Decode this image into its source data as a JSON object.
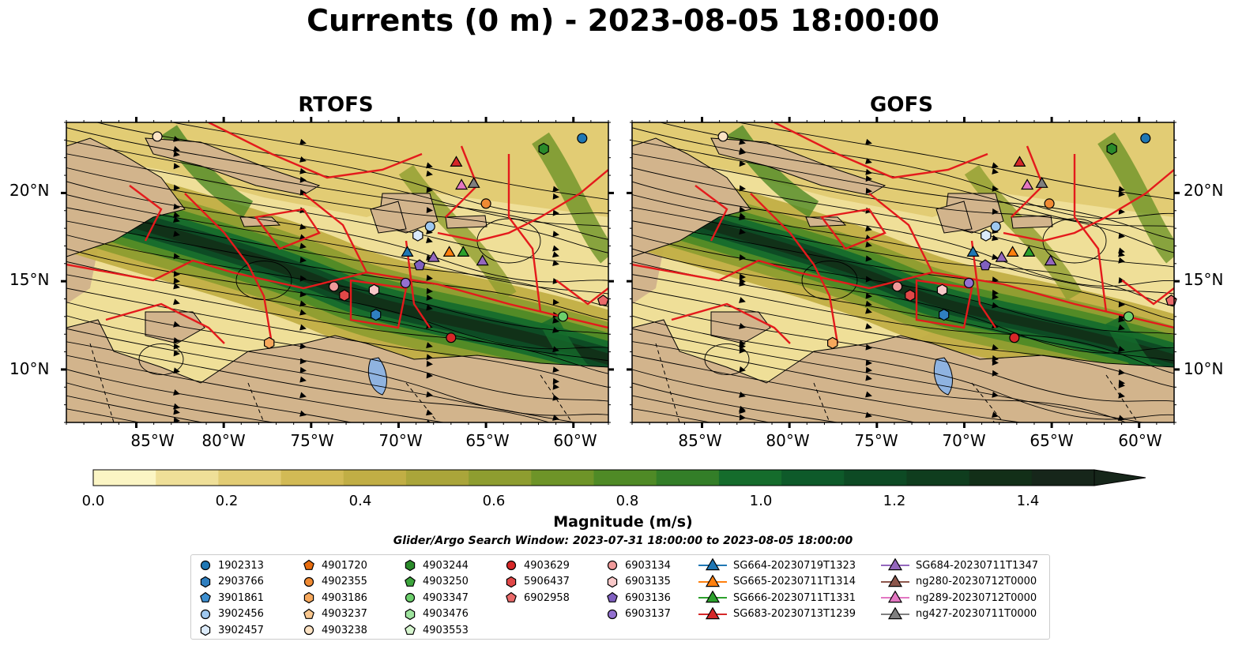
{
  "title": "Currents (0 m) - 2023-08-05 18:00:00",
  "panels": [
    {
      "name": "RTOFS"
    },
    {
      "name": "GOFS"
    }
  ],
  "lat_labels": [
    "20°N",
    "15°N",
    "10°N"
  ],
  "lon_labels": [
    "85°W",
    "80°W",
    "75°W",
    "70°W",
    "65°W",
    "60°W"
  ],
  "map_extent": {
    "lon": [
      -89,
      -58
    ],
    "lat": [
      7,
      24
    ]
  },
  "colorbar": {
    "label": "Magnitude (m/s)",
    "ticks": [
      "0.0",
      "0.2",
      "0.4",
      "0.6",
      "0.8",
      "1.0",
      "1.2",
      "1.4"
    ],
    "range": [
      0,
      1.5
    ],
    "extend": "max",
    "colors": [
      "#fbf5c4",
      "#efdf98",
      "#e2cc74",
      "#d2ba55",
      "#c1ae45",
      "#aaa53a",
      "#8e9d30",
      "#6e9428",
      "#4f8a26",
      "#337e28",
      "#156c2c",
      "#0e5a2a",
      "#0d4a24",
      "#0f3d1e",
      "#122f18",
      "#16261a"
    ]
  },
  "search_window": "Glider/Argo Search Window: 2023-07-31 18:00:00 to 2023-08-05 18:00:00",
  "legend": [
    {
      "label": "1902313",
      "marker": "circle",
      "color": "#1f77b4"
    },
    {
      "label": "2903766",
      "marker": "hexagon",
      "color": "#2f7fc0"
    },
    {
      "label": "3901861",
      "marker": "pentagon",
      "color": "#3d8fd0"
    },
    {
      "label": "3902456",
      "marker": "circle",
      "color": "#9fc8ef"
    },
    {
      "label": "3902457",
      "marker": "hexagon",
      "color": "#dbeafa"
    },
    {
      "label": "4901720",
      "marker": "pentagon",
      "color": "#e86d10"
    },
    {
      "label": "4902355",
      "marker": "circle",
      "color": "#f08a33"
    },
    {
      "label": "4903186",
      "marker": "hexagon",
      "color": "#f6a85c"
    },
    {
      "label": "4903237",
      "marker": "pentagon",
      "color": "#f9c78e"
    },
    {
      "label": "4903238",
      "marker": "circle",
      "color": "#fde3c4"
    },
    {
      "label": "4903244",
      "marker": "hexagon",
      "color": "#2a8a2a"
    },
    {
      "label": "4903250",
      "marker": "pentagon",
      "color": "#3da53d"
    },
    {
      "label": "4903347",
      "marker": "circle",
      "color": "#6ccf6c"
    },
    {
      "label": "4903476",
      "marker": "hexagon",
      "color": "#9ee39e"
    },
    {
      "label": "4903553",
      "marker": "pentagon",
      "color": "#d6f5cf"
    },
    {
      "label": "4903629",
      "marker": "circle",
      "color": "#d62728"
    },
    {
      "label": "5906437",
      "marker": "hexagon",
      "color": "#e04848"
    },
    {
      "label": "6902958",
      "marker": "pentagon",
      "color": "#ea6a6a"
    },
    {
      "label": "6903134",
      "marker": "circle",
      "color": "#f09a9a"
    },
    {
      "label": "6903135",
      "marker": "hexagon",
      "color": "#f8c8c8"
    },
    {
      "label": "6903136",
      "marker": "pentagon",
      "color": "#8060c0"
    },
    {
      "label": "6903137",
      "marker": "circle",
      "color": "#9370d0"
    },
    {
      "label": "SG664-20230719T1323",
      "marker": "triangle",
      "color": "#1f77b4"
    },
    {
      "label": "SG665-20230711T1314",
      "marker": "triangle",
      "color": "#ff7f0e"
    },
    {
      "label": "SG666-20230711T1331",
      "marker": "triangle",
      "color": "#2ca02c"
    },
    {
      "label": "SG683-20230713T1239",
      "marker": "triangle",
      "color": "#d62728"
    },
    {
      "label": "SG684-20230711T1347",
      "marker": "triangle",
      "color": "#9467bd"
    },
    {
      "label": "ng280-20230712T0000",
      "marker": "triangle",
      "color": "#8c564b"
    },
    {
      "label": "ng289-20230712T0000",
      "marker": "triangle",
      "color": "#e377c2"
    },
    {
      "label": "ng427-20230711T0000",
      "marker": "triangle",
      "color": "#7f7f7f"
    }
  ],
  "platform_positions": [
    {
      "id": "1902313",
      "lon": -59.5,
      "lat": 23.1
    },
    {
      "id": "4903238",
      "lon": -83.8,
      "lat": 23.2
    },
    {
      "id": "4903244",
      "lon": -61.7,
      "lat": 22.5
    },
    {
      "id": "4902355",
      "lon": -65.0,
      "lat": 19.4
    },
    {
      "id": "3902456",
      "lon": -68.2,
      "lat": 18.1
    },
    {
      "id": "3902457",
      "lon": -68.9,
      "lat": 17.6
    },
    {
      "id": "6903134",
      "lon": -73.7,
      "lat": 14.7
    },
    {
      "id": "5906437",
      "lon": -73.1,
      "lat": 14.2
    },
    {
      "id": "6903135",
      "lon": -71.4,
      "lat": 14.5
    },
    {
      "id": "6903137",
      "lon": -69.6,
      "lat": 14.9
    },
    {
      "id": "6903136",
      "lon": -68.8,
      "lat": 15.9
    },
    {
      "id": "2903766",
      "lon": -71.3,
      "lat": 13.1
    },
    {
      "id": "4903629",
      "lon": -67.0,
      "lat": 11.8
    },
    {
      "id": "4903347",
      "lon": -60.6,
      "lat": 13.0
    },
    {
      "id": "6902958",
      "lon": -58.3,
      "lat": 13.9
    },
    {
      "id": "4903186",
      "lon": -77.4,
      "lat": 11.5
    },
    {
      "id": "SG664-20230719T1323",
      "lon": -69.5,
      "lat": 16.6
    },
    {
      "id": "SG684-20230711T1347",
      "lon": -68.0,
      "lat": 16.3
    },
    {
      "id": "SG665-20230711T1314",
      "lon": -67.1,
      "lat": 16.6
    },
    {
      "id": "SG666-20230711T1331",
      "lon": -66.3,
      "lat": 16.6
    },
    {
      "id": "SG684-20230711T1347",
      "lon": -65.2,
      "lat": 16.1
    },
    {
      "id": "SG683-20230713T1239",
      "lon": -66.7,
      "lat": 21.7
    },
    {
      "id": "ng289-20230712T0000",
      "lon": -66.4,
      "lat": 20.4
    },
    {
      "id": "ng427-20230711T0000",
      "lon": -65.7,
      "lat": 20.5
    }
  ]
}
